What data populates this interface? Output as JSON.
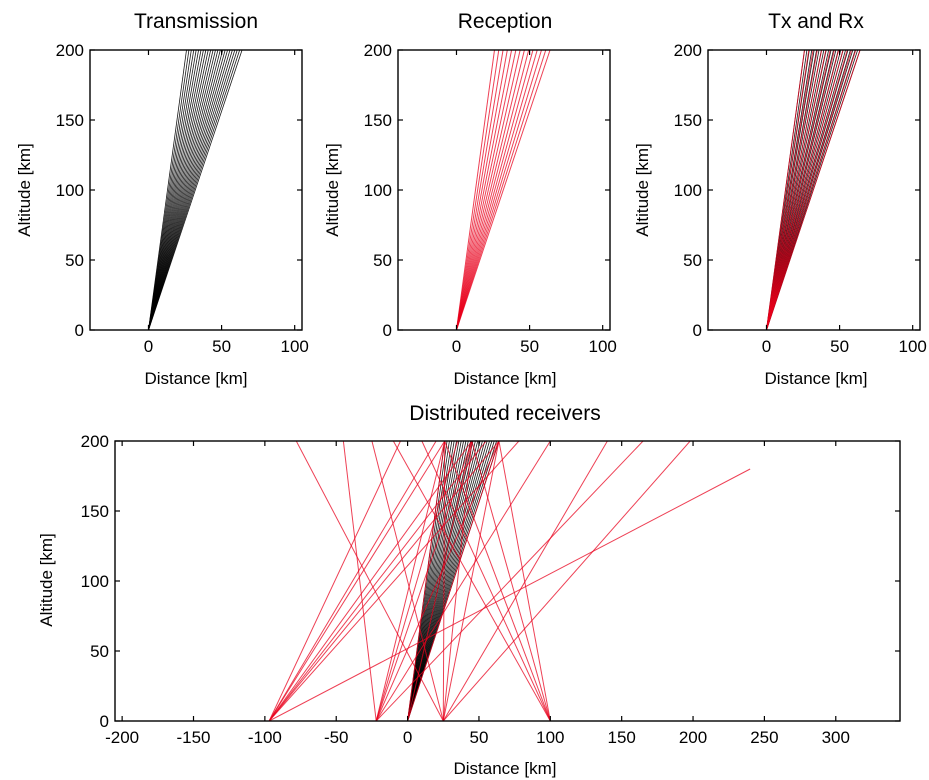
{
  "colors": {
    "transmission": "#000000",
    "reception": "#e8001c",
    "axes": "#000000"
  },
  "chart_data": [
    {
      "type": "line",
      "title": "Transmission",
      "xlabel": "Distance [km]",
      "ylabel": "Altitude [km]",
      "xlim": [
        -40,
        105
      ],
      "ylim": [
        0,
        200
      ],
      "xticks": [
        0,
        50,
        100
      ],
      "yticks": [
        0,
        50,
        100,
        150,
        200
      ],
      "grid": false,
      "series": [
        {
          "role": "transmission",
          "fan": {
            "origin": [
              0,
              0
            ],
            "x_at_top_range": [
              26,
              64
            ],
            "top_y": 200,
            "count": 24
          }
        }
      ]
    },
    {
      "type": "line",
      "title": "Reception",
      "xlabel": "Distance [km]",
      "ylabel": "Altitude [km]",
      "xlim": [
        -40,
        105
      ],
      "ylim": [
        0,
        200
      ],
      "xticks": [
        0,
        50,
        100
      ],
      "yticks": [
        0,
        50,
        100,
        150,
        200
      ],
      "grid": false,
      "series": [
        {
          "role": "reception",
          "fan": {
            "origin": [
              0,
              0
            ],
            "x_at_top_range": [
              26,
              64
            ],
            "top_y": 200,
            "count": 14
          }
        }
      ]
    },
    {
      "type": "line",
      "title": "Tx and Rx",
      "xlabel": "Distance [km]",
      "ylabel": "Altitude [km]",
      "xlim": [
        -40,
        105
      ],
      "ylim": [
        0,
        200
      ],
      "xticks": [
        0,
        50,
        100
      ],
      "yticks": [
        0,
        50,
        100,
        150,
        200
      ],
      "grid": false,
      "series": [
        {
          "role": "transmission",
          "fan": {
            "origin": [
              0,
              0
            ],
            "x_at_top_range": [
              26,
              64
            ],
            "top_y": 200,
            "count": 24
          }
        },
        {
          "role": "reception",
          "fan": {
            "origin": [
              0,
              0
            ],
            "x_at_top_range": [
              26,
              64
            ],
            "top_y": 200,
            "count": 14
          }
        }
      ]
    },
    {
      "type": "line",
      "title": "Distributed receivers",
      "xlabel": "Distance [km]",
      "ylabel": "Altitude [km]",
      "xlim": [
        -205,
        345
      ],
      "ylim": [
        0,
        200
      ],
      "xticks": [
        -200,
        -150,
        -100,
        -50,
        0,
        50,
        100,
        150,
        200,
        250,
        300
      ],
      "yticks": [
        0,
        50,
        100,
        150,
        200
      ],
      "grid": false,
      "series": [
        {
          "role": "transmission",
          "fan": {
            "origin": [
              0,
              0
            ],
            "x_at_top_range": [
              26,
              64
            ],
            "top_y": 200,
            "count": 24
          }
        },
        {
          "role": "reception",
          "rays": [
            {
              "from": [
                -97,
                0
              ],
              "to": [
                26,
                200
              ]
            },
            {
              "from": [
                -97,
                0
              ],
              "to": [
                45,
                200
              ]
            },
            {
              "from": [
                -97,
                0
              ],
              "to": [
                64,
                200
              ]
            },
            {
              "from": [
                -22,
                0
              ],
              "to": [
                26,
                200
              ]
            },
            {
              "from": [
                -22,
                0
              ],
              "to": [
                45,
                200
              ]
            },
            {
              "from": [
                -22,
                0
              ],
              "to": [
                64,
                200
              ]
            },
            {
              "from": [
                0,
                0
              ],
              "to": [
                26,
                200
              ]
            },
            {
              "from": [
                0,
                0
              ],
              "to": [
                45,
                200
              ]
            },
            {
              "from": [
                0,
                0
              ],
              "to": [
                64,
                200
              ]
            },
            {
              "from": [
                25,
                0
              ],
              "to": [
                26,
                200
              ]
            },
            {
              "from": [
                25,
                0
              ],
              "to": [
                45,
                200
              ]
            },
            {
              "from": [
                25,
                0
              ],
              "to": [
                64,
                200
              ]
            },
            {
              "from": [
                100,
                0
              ],
              "to": [
                26,
                200
              ]
            },
            {
              "from": [
                100,
                0
              ],
              "to": [
                45,
                200
              ]
            },
            {
              "from": [
                100,
                0
              ],
              "to": [
                64,
                200
              ]
            },
            {
              "from": [
                -97,
                0
              ],
              "to": [
                -5,
                200
              ]
            },
            {
              "from": [
                -97,
                0
              ],
              "to": [
                20,
                200
              ]
            },
            {
              "from": [
                -22,
                0
              ],
              "to": [
                -45,
                200
              ]
            },
            {
              "from": [
                -22,
                0
              ],
              "to": [
                35,
                200
              ]
            },
            {
              "from": [
                25,
                0
              ],
              "to": [
                -78,
                200
              ]
            },
            {
              "from": [
                25,
                0
              ],
              "to": [
                -25,
                200
              ]
            },
            {
              "from": [
                25,
                0
              ],
              "to": [
                140,
                200
              ]
            },
            {
              "from": [
                25,
                0
              ],
              "to": [
                198,
                200
              ]
            },
            {
              "from": [
                100,
                0
              ],
              "to": [
                -10,
                200
              ]
            },
            {
              "from": [
                100,
                0
              ],
              "to": [
                10,
                200
              ]
            },
            {
              "from": [
                -22,
                0
              ],
              "to": [
                100,
                200
              ]
            },
            {
              "from": [
                -97,
                0
              ],
              "to": [
                78,
                200
              ]
            },
            {
              "from": [
                -97,
                0
              ],
              "to": [
                240,
                180
              ]
            },
            {
              "from": [
                -22,
                0
              ],
              "to": [
                165,
                200
              ]
            },
            {
              "from": [
                -97,
                0
              ],
              "to": [
                55,
                200
              ]
            }
          ]
        }
      ]
    }
  ]
}
